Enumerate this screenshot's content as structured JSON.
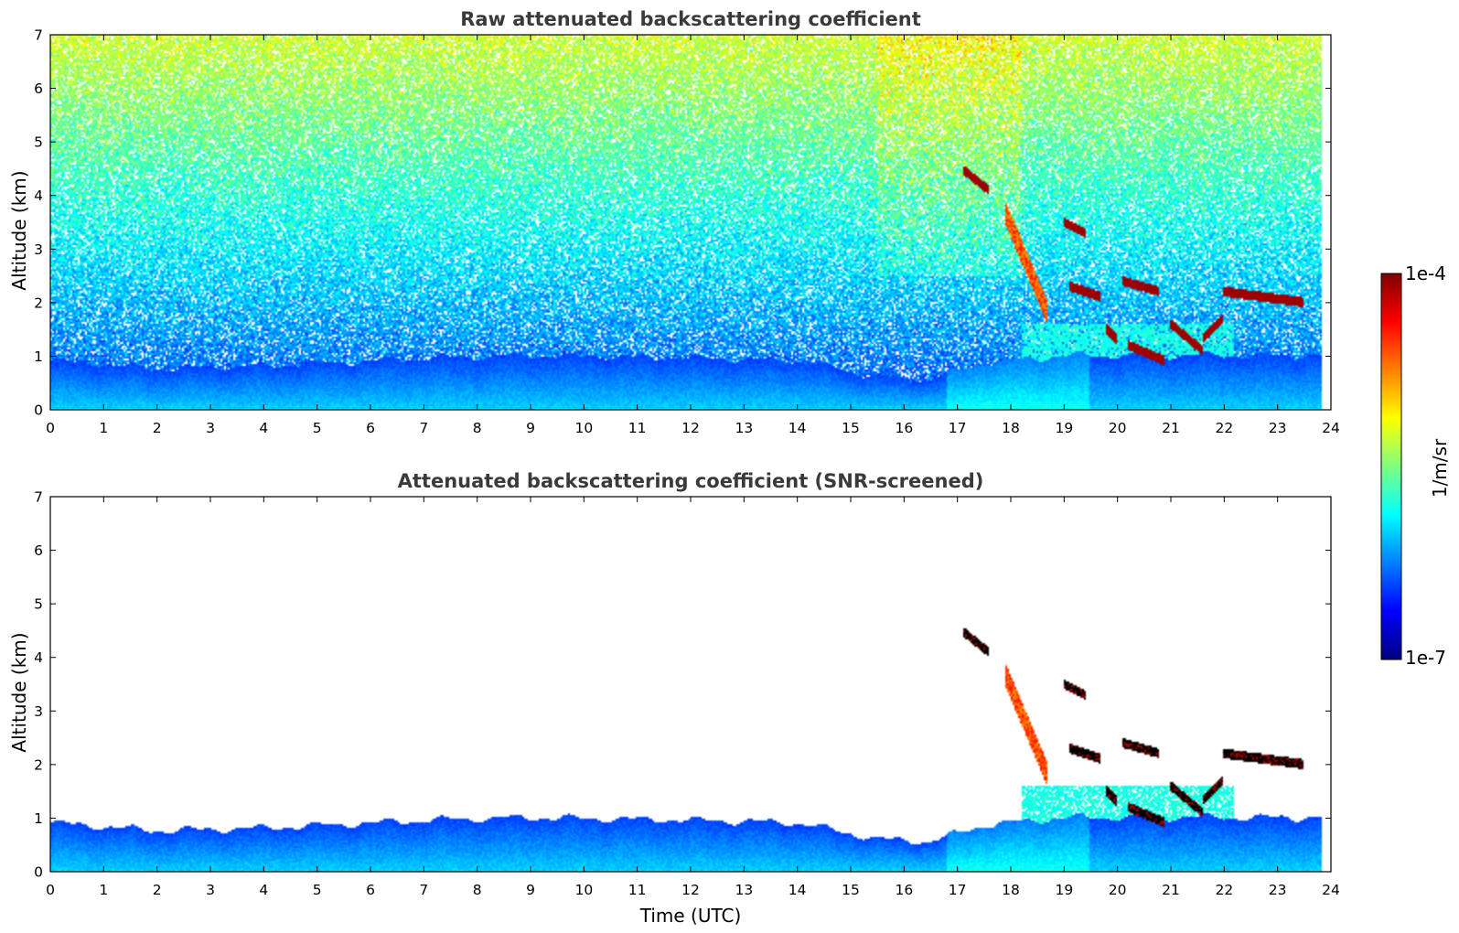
{
  "chart_data": [
    {
      "type": "heatmap",
      "title": "Raw attenuated backscattering coefficient",
      "xlabel": "",
      "ylabel": "Altitude (km)",
      "xlim": [
        0,
        24
      ],
      "ylim": [
        0,
        7
      ],
      "xticks": [
        "0",
        "1",
        "2",
        "3",
        "4",
        "5",
        "6",
        "7",
        "8",
        "9",
        "10",
        "11",
        "12",
        "13",
        "14",
        "15",
        "16",
        "17",
        "18",
        "19",
        "20",
        "21",
        "22",
        "23",
        "24"
      ],
      "yticks": [
        "0",
        "1",
        "2",
        "3",
        "4",
        "5",
        "6",
        "7"
      ],
      "boundary_layer_top_km": [
        {
          "t": 0,
          "z": 0.9
        },
        {
          "t": 2,
          "z": 0.75
        },
        {
          "t": 4,
          "z": 0.8
        },
        {
          "t": 7,
          "z": 0.95
        },
        {
          "t": 9,
          "z": 1.0
        },
        {
          "t": 12,
          "z": 0.95
        },
        {
          "t": 14,
          "z": 0.9
        },
        {
          "t": 15.5,
          "z": 0.6
        },
        {
          "t": 16.5,
          "z": 0.55
        },
        {
          "t": 17.5,
          "z": 0.85
        },
        {
          "t": 19,
          "z": 1.0
        },
        {
          "t": 22,
          "z": 1.0
        },
        {
          "t": 23.8,
          "z": 1.0
        }
      ],
      "cloud_layers": [
        {
          "t_start": 17.1,
          "t_end": 17.6,
          "z_start": 4.5,
          "z_end": 4.1
        },
        {
          "t_start": 19.0,
          "t_end": 19.4,
          "z_start": 3.5,
          "z_end": 3.3
        },
        {
          "t_start": 19.1,
          "t_end": 19.7,
          "z_start": 2.3,
          "z_end": 2.1
        },
        {
          "t_start": 20.1,
          "t_end": 20.8,
          "z_start": 2.4,
          "z_end": 2.2
        },
        {
          "t_start": 19.8,
          "t_end": 20.0,
          "z_start": 1.5,
          "z_end": 1.3
        },
        {
          "t_start": 20.2,
          "t_end": 20.9,
          "z_start": 1.2,
          "z_end": 0.9
        },
        {
          "t_start": 21.0,
          "t_end": 21.6,
          "z_start": 1.6,
          "z_end": 1.1
        },
        {
          "t_start": 21.6,
          "t_end": 22.0,
          "z_start": 1.3,
          "z_end": 1.7
        },
        {
          "t_start": 22.0,
          "t_end": 23.5,
          "z_start": 2.2,
          "z_end": 2.0
        }
      ],
      "fall_streaks": [
        {
          "t_start": 17.9,
          "t_end": 18.7,
          "z_start": 3.7,
          "z_end": 1.8
        }
      ],
      "noise": true
    },
    {
      "type": "heatmap",
      "title": "Attenuated backscattering coefficient (SNR-screened)",
      "xlabel": "Time (UTC)",
      "ylabel": "Altitude (km)",
      "xlim": [
        0,
        24
      ],
      "ylim": [
        0,
        7
      ],
      "xticks": [
        "0",
        "1",
        "2",
        "3",
        "4",
        "5",
        "6",
        "7",
        "8",
        "9",
        "10",
        "11",
        "12",
        "13",
        "14",
        "15",
        "16",
        "17",
        "18",
        "19",
        "20",
        "21",
        "22",
        "23",
        "24"
      ],
      "yticks": [
        "0",
        "1",
        "2",
        "3",
        "4",
        "5",
        "6",
        "7"
      ],
      "noise": false
    }
  ],
  "colorbar": {
    "top_label": "1e-4",
    "bottom_label": "1e-7",
    "units": "1/m/sr",
    "scale": "log",
    "range": [
      1e-07,
      0.0001
    ],
    "colormap": [
      "#00007f",
      "#0000ff",
      "#007fff",
      "#00ffff",
      "#7fff7f",
      "#ffff00",
      "#ff7f00",
      "#ff0000",
      "#7f0000"
    ]
  }
}
